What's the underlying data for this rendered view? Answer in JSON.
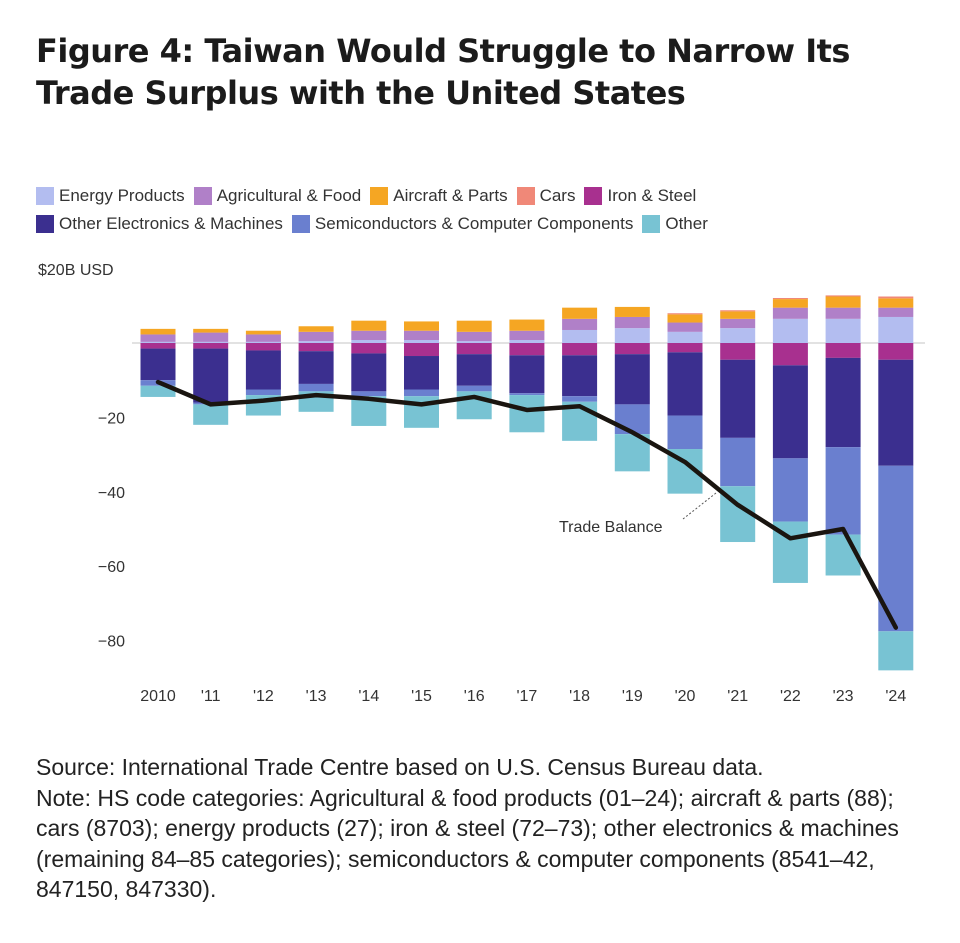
{
  "title": "Figure 4: Taiwan Would Struggle to Narrow Its Trade Surplus with the United States",
  "colors": {
    "energy": "#b3bdf0",
    "agricultural": "#b080c8",
    "aircraft": "#f5a623",
    "cars": "#f08878",
    "iron_steel": "#a8308f",
    "other_electronics": "#3b2f8f",
    "semiconductors": "#6a7fcf",
    "other": "#78c3d3",
    "balance_line": "#1a1510",
    "zero_line": "#d8d8d8"
  },
  "chart_data": {
    "type": "bar",
    "stacked": true,
    "unit_label": "$20B USD",
    "categories": [
      "2010",
      "'11",
      "'12",
      "'13",
      "'14",
      "'15",
      "'16",
      "'17",
      "'18",
      "'19",
      "'20",
      "'21",
      "'22",
      "'23",
      "'24"
    ],
    "yticks": [
      -20,
      -40,
      -60,
      -80
    ],
    "ylim": [
      -90,
      20
    ],
    "series": [
      {
        "key": "energy",
        "name": "Energy Products",
        "values": [
          0.3,
          0.3,
          0.3,
          0.5,
          0.8,
          0.8,
          0.5,
          0.8,
          3.5,
          4.0,
          3.0,
          4.0,
          6.5,
          6.5,
          7.0
        ]
      },
      {
        "key": "agricultural",
        "name": "Agricultural & Food",
        "values": [
          2.0,
          2.5,
          2.0,
          2.5,
          2.5,
          2.5,
          2.5,
          2.5,
          3.0,
          3.0,
          2.5,
          2.5,
          3.0,
          3.0,
          2.5
        ]
      },
      {
        "key": "aircraft",
        "name": "Aircraft & Parts",
        "values": [
          1.5,
          1.0,
          1.0,
          1.5,
          2.7,
          2.5,
          3.0,
          3.0,
          3.0,
          2.7,
          2.2,
          2.0,
          2.3,
          3.0,
          2.5
        ]
      },
      {
        "key": "cars",
        "name": "Cars",
        "values": [
          0,
          0,
          0,
          0,
          0,
          0,
          0,
          0,
          0,
          0,
          0.3,
          0.3,
          0.3,
          0.3,
          0.5
        ]
      },
      {
        "key": "iron_steel",
        "name": "Iron & Steel",
        "values": [
          -1.5,
          -1.5,
          -2.0,
          -2.2,
          -2.8,
          -3.5,
          -3.0,
          -3.3,
          -3.3,
          -3.0,
          -2.5,
          -4.5,
          -6.0,
          -4.0,
          -4.5
        ]
      },
      {
        "key": "other_electronics",
        "name": "Other Electronics & Machines",
        "values": [
          -8.5,
          -14.5,
          -10.5,
          -8.8,
          -10.2,
          -9.0,
          -8.5,
          -10.2,
          -11.0,
          -13.5,
          -17.0,
          -21.0,
          -25.0,
          -24.0,
          -28.5
        ]
      },
      {
        "key": "semiconductors",
        "name": "Semiconductors & Computer Components",
        "values": [
          -1.5,
          -0.5,
          -1.5,
          -2.0,
          -1.3,
          -1.8,
          -1.5,
          -0.5,
          -1.5,
          -8.0,
          -9.0,
          -13.0,
          -17.0,
          -23.5,
          -44.5
        ]
      },
      {
        "key": "other",
        "name": "Other",
        "values": [
          -3.0,
          -5.5,
          -5.5,
          -5.5,
          -8.0,
          -8.5,
          -7.5,
          -10.0,
          -10.5,
          -10.0,
          -12.0,
          -15.0,
          -16.5,
          -11.0,
          -10.5
        ]
      }
    ],
    "trade_balance": {
      "name": "Trade Balance",
      "values": [
        -10.5,
        -16.5,
        -15.5,
        -14.0,
        -15.0,
        -16.5,
        -14.5,
        -18.0,
        -17.0,
        -24.0,
        -32.0,
        -43.5,
        -52.5,
        -50.0,
        -76.5
      ]
    }
  },
  "footer": {
    "source": "Source: International Trade Centre based on U.S. Census Bureau data.",
    "note": "Note: HS code categories: Agricultural & food products (01–24); aircraft & parts (88); cars (8703); energy products (27); iron & steel (72–73); other electronics & machines (remaining 84–85 categories); semiconductors & computer components (8541–42, 847150, 847330)."
  }
}
